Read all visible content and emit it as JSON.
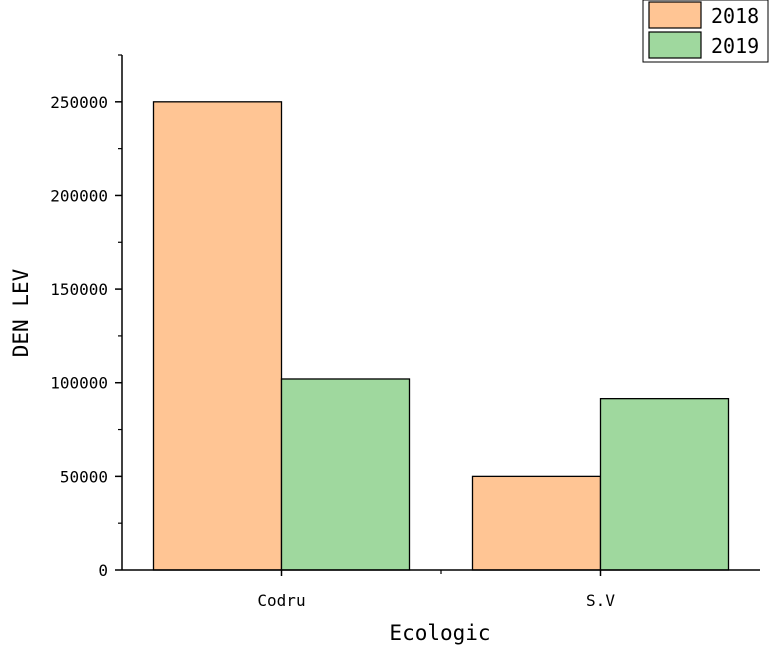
{
  "chart_data": {
    "type": "bar",
    "categories": [
      "Codru",
      "S.V"
    ],
    "series": [
      {
        "name": "2018",
        "values": [
          250000,
          50000
        ],
        "color": "#FFC594"
      },
      {
        "name": "2019",
        "values": [
          102000,
          91500
        ],
        "color": "#9FD89E"
      }
    ],
    "xlabel": "Ecologic",
    "ylabel": "DEN LEV",
    "ylim": [
      0,
      275000
    ],
    "yticks": [
      0,
      50000,
      100000,
      150000,
      200000,
      250000
    ],
    "ytick_labels": [
      "0",
      "50000",
      "100000",
      "150000",
      "200000",
      "250000"
    ],
    "grid": false,
    "legend_position": "top-right"
  }
}
